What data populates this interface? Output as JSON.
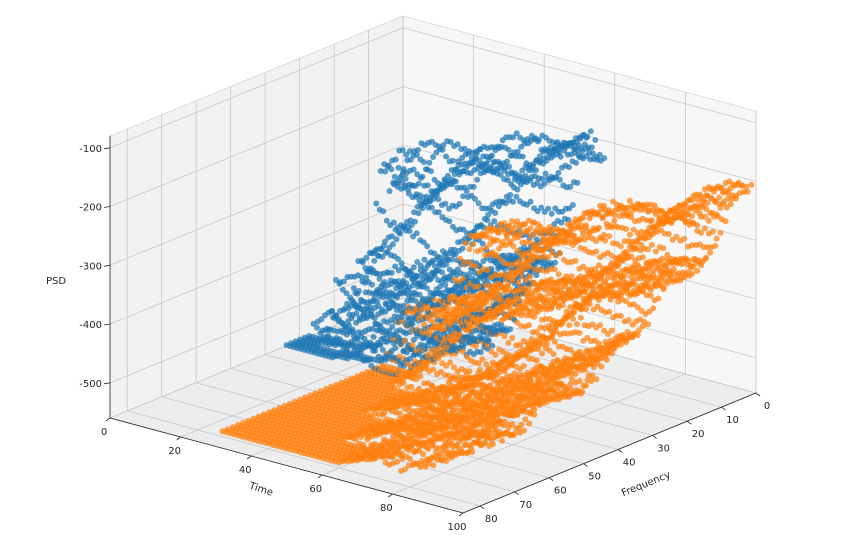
{
  "chart_data": {
    "type": "scatter",
    "projection": "3d",
    "title": "",
    "xlabel": "Time",
    "ylabel": "Frequency",
    "zlabel": "PSD",
    "xlim": [
      0,
      100
    ],
    "ylim": [
      0,
      85
    ],
    "zlim": [
      -560,
      -80
    ],
    "x_ticks": [
      0,
      20,
      40,
      60,
      80,
      100
    ],
    "y_ticks": [
      0,
      10,
      20,
      30,
      40,
      50,
      60,
      70,
      80
    ],
    "z_ticks": [
      -100,
      -200,
      -300,
      -400,
      -500
    ],
    "grid": true,
    "series": [
      {
        "color": "#1f77b4",
        "time_range": [
          0,
          60
        ],
        "frequency_range": [
          0,
          35
        ],
        "psd_range": [
          -550,
          -100
        ]
      },
      {
        "color": "#ff7f0e",
        "time_range": [
          25,
          100
        ],
        "frequency_range": [
          0,
          80
        ],
        "psd_range": [
          -550,
          -160
        ]
      }
    ]
  }
}
